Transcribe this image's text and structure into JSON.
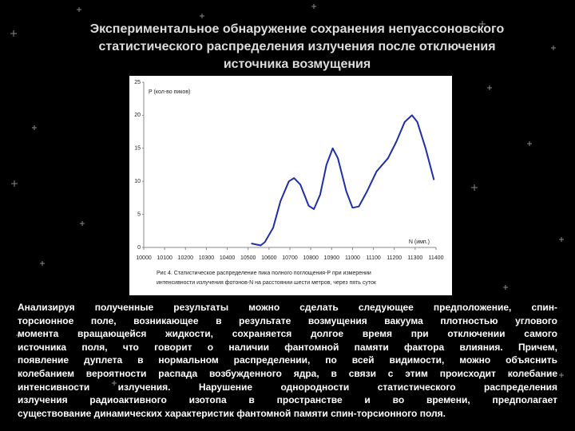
{
  "title": [
    "Экспериментальное обнаружение сохранения непуассоновского",
    "статистического распределения излучения после отключения",
    "источника возмущения"
  ],
  "body": [
    "Анализируя полученные результаты можно сделать следующее предположение, спин-",
    "торсионное поле, возникающее в результате возмущения вакуума плотностью углового",
    "момента вращающейся жидкости, сохраняется долгое время при отключении самого",
    "источника поля, что говорит о наличии фантомной памяти фактора влияния. Причем,",
    "появление дуплета в нормальном распределении, по всей видимости, можно объяснить",
    "колебанием вероятности распада возбужденного ядра, в связи с этим происходит колебание",
    "интенсивности излучения. Нарушение однородности статистического распределения",
    "излучения радиоактивного изотопа в пространстве и во времени, предполагает",
    "существование динамических характеристик фантомной памяти спин-торсионного поля."
  ],
  "chart_data": {
    "type": "line",
    "y_label": "P (кол-во пиков)",
    "x_label": "N (имп.)",
    "caption": [
      "Рис 4. Статистическое распределение пика полного поглощения-Р при измерении",
      "интенсивности излучения фотонов-N на расстоянии шести метров, через пять суток"
    ],
    "x": [
      10515,
      10560,
      10580,
      10620,
      10655,
      10695,
      10720,
      10750,
      10790,
      10815,
      10845,
      10875,
      10905,
      10930,
      10970,
      11000,
      11030,
      11070,
      11115,
      11170,
      11210,
      11250,
      11285,
      11310,
      11350,
      11390
    ],
    "values": [
      0.6,
      0.3,
      0.8,
      3,
      7,
      10,
      10.5,
      9.5,
      6.3,
      5.8,
      8,
      12.5,
      15,
      13.5,
      8.5,
      6,
      6.2,
      8.5,
      11.5,
      13.5,
      16,
      19,
      20,
      19,
      15,
      10.2
    ],
    "color": "#1f2fa8",
    "xlim": [
      10000,
      11400
    ],
    "xticks": [
      10000,
      10100,
      10200,
      10300,
      10400,
      10500,
      10600,
      10700,
      10800,
      10900,
      11000,
      11100,
      11200,
      11300,
      11400
    ],
    "ylim": [
      0,
      25
    ],
    "yticks": [
      0,
      5,
      10,
      15,
      20,
      25
    ],
    "grid": false
  }
}
